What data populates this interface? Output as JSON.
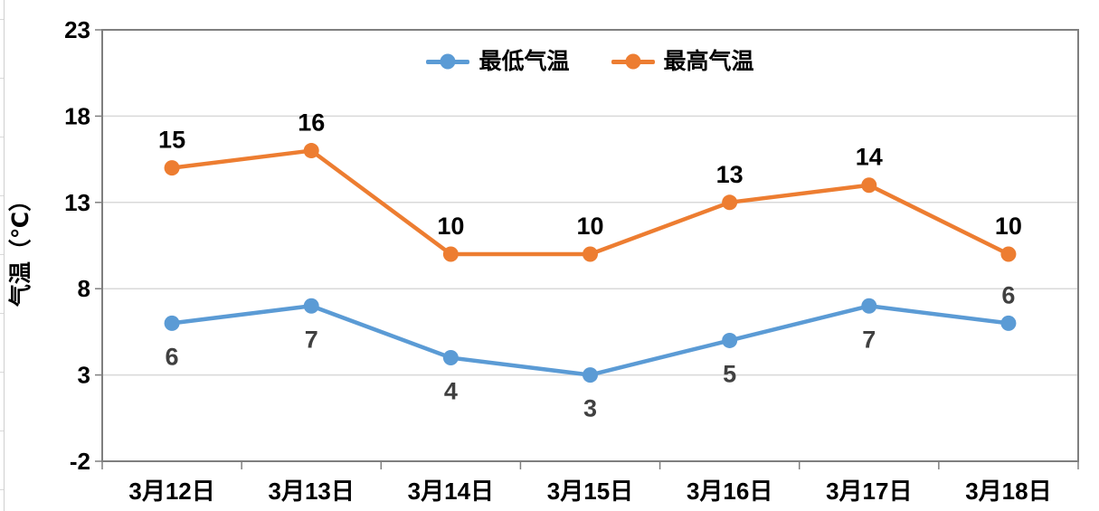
{
  "chart_data": {
    "type": "line",
    "title": "",
    "categories": [
      "3月12日",
      "3月13日",
      "3月14日",
      "3月15日",
      "3月16日",
      "3月17日",
      "3月18日"
    ],
    "series": [
      {
        "name": "最低气温",
        "color": "#5B9BD5",
        "label_color": "#404040",
        "values": [
          6,
          7,
          4,
          3,
          5,
          7,
          6
        ],
        "label_placement": [
          "below",
          "below",
          "below",
          "below",
          "below",
          "below",
          "above"
        ]
      },
      {
        "name": "最高气温",
        "color": "#ED7D31",
        "label_color": "#000000",
        "values": [
          15,
          16,
          10,
          10,
          13,
          14,
          10
        ],
        "label_placement": [
          "above",
          "above",
          "above",
          "above",
          "above",
          "above",
          "above"
        ]
      }
    ],
    "xlabel": "",
    "ylabel": "气温（℃）",
    "ylim": [
      -2,
      23
    ],
    "yticks": [
      23,
      18,
      13,
      8,
      3,
      -2
    ],
    "grid": true,
    "legend_position": "top-center",
    "colors": {
      "gridline": "#D9D9D9",
      "axis": "#7F7F7F",
      "tick_label": "#000000"
    }
  }
}
